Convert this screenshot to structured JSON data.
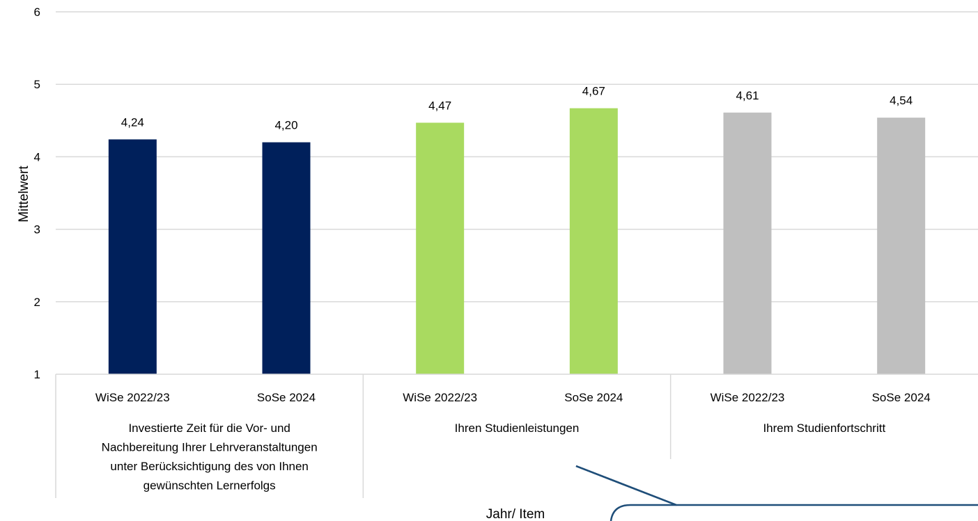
{
  "chart_data": {
    "type": "bar",
    "ylabel": "Mittelwert",
    "xlabel": "Jahr/ Item",
    "ylim": [
      1,
      6
    ],
    "yticks": [
      "1",
      "2",
      "3",
      "4",
      "5",
      "6"
    ],
    "grid": true,
    "groups": [
      {
        "label_lines": [
          "Investierte Zeit für die Vor- und",
          "Nachbereitung Ihrer Lehrveranstaltungen",
          "unter Berücksichtigung des von Ihnen",
          "gewünschten Lernerfolgs"
        ],
        "color": "#00205B",
        "bars": [
          {
            "category": "WiSe 2022/23",
            "value": 4.24,
            "label": "4,24"
          },
          {
            "category": "SoSe 2024",
            "value": 4.2,
            "label": "4,20"
          }
        ]
      },
      {
        "label_lines": [
          "Ihren Studienleistungen"
        ],
        "color": "#A9DA60",
        "bars": [
          {
            "category": "WiSe 2022/23",
            "value": 4.47,
            "label": "4,47"
          },
          {
            "category": "SoSe 2024",
            "value": 4.67,
            "label": "4,67"
          }
        ]
      },
      {
        "label_lines": [
          "Ihrem Studienfortschritt"
        ],
        "color": "#BFBFBF",
        "bars": [
          {
            "category": "WiSe 2022/23",
            "value": 4.61,
            "label": "4,61"
          },
          {
            "category": "SoSe 2024",
            "value": 4.54,
            "label": "4,54"
          }
        ]
      }
    ]
  },
  "callout_color": "#1F4E79"
}
